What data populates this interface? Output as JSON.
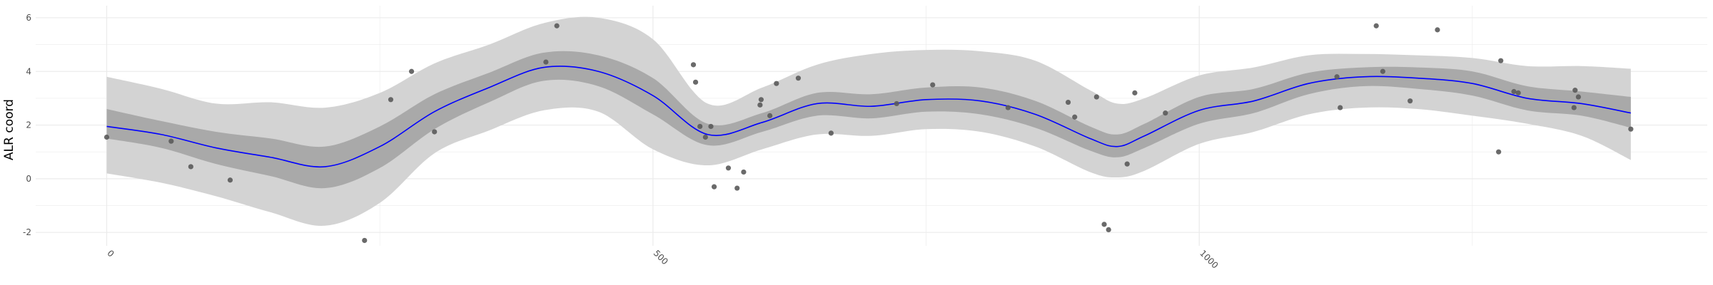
{
  "chart_data": {
    "type": "line",
    "title": "",
    "xlabel": "",
    "ylabel": "ALR coord",
    "xlim": [
      -65,
      1465
    ],
    "ylim": [
      -2.5,
      6.45
    ],
    "x_ticks": [
      0,
      500,
      1000
    ],
    "x_tick_labels": [
      "0",
      "500",
      "1000"
    ],
    "y_ticks": [
      -2,
      0,
      2,
      4,
      6
    ],
    "y_tick_labels": [
      "-2",
      "0",
      "2",
      "4",
      "6"
    ],
    "grid": true,
    "legend": "none",
    "colors": {
      "line": "#0000ff",
      "inner_band": "#a9a9a9",
      "outer_band": "#d3d3d3",
      "points": "#5a5a5a",
      "grid": "#ebebeb"
    },
    "series": [
      {
        "kind": "points",
        "x": [
          0,
          59,
          77,
          113,
          236,
          260,
          279,
          300,
          402,
          412,
          537,
          539,
          543,
          548,
          553,
          556,
          569,
          577,
          583,
          598,
          599,
          607,
          613,
          633,
          663,
          723,
          756,
          825,
          880,
          886,
          906,
          913,
          917,
          934,
          941,
          969,
          1126,
          1129,
          1162,
          1168,
          1193,
          1218,
          1274,
          1276,
          1288,
          1292,
          1343,
          1344,
          1347,
          1395
        ],
        "y": [
          1.55,
          1.4,
          0.45,
          -0.05,
          -2.3,
          2.95,
          4.0,
          1.75,
          4.35,
          5.7,
          4.25,
          3.6,
          1.95,
          1.55,
          1.95,
          -0.3,
          0.4,
          -0.35,
          0.25,
          2.75,
          2.95,
          2.35,
          3.55,
          3.75,
          1.7,
          2.8,
          3.5,
          2.65,
          2.85,
          2.3,
          3.05,
          -1.7,
          -1.9,
          0.55,
          3.2,
          2.45,
          3.8,
          2.65,
          5.7,
          4.0,
          2.9,
          5.55,
          1.0,
          4.4,
          3.25,
          3.2,
          2.65,
          3.3,
          3.05,
          1.85
        ]
      },
      {
        "kind": "smooth",
        "x": [
          0,
          50,
          100,
          150,
          200,
          250,
          300,
          350,
          400,
          450,
          500,
          550,
          600,
          650,
          700,
          750,
          800,
          850,
          900,
          925,
          950,
          1000,
          1050,
          1100,
          1150,
          1200,
          1250,
          1300,
          1350,
          1395
        ],
        "y": [
          1.95,
          1.65,
          1.15,
          0.8,
          0.45,
          1.2,
          2.5,
          3.4,
          4.15,
          4.0,
          3.1,
          1.65,
          2.1,
          2.8,
          2.7,
          2.95,
          2.9,
          2.4,
          1.5,
          1.2,
          1.6,
          2.55,
          2.9,
          3.55,
          3.8,
          3.75,
          3.55,
          3.0,
          2.8,
          2.45
        ],
        "inner_lower": [
          1.5,
          1.15,
          0.55,
          0.1,
          -0.35,
          0.4,
          1.85,
          2.85,
          3.65,
          3.45,
          2.4,
          1.25,
          1.75,
          2.35,
          2.25,
          2.5,
          2.4,
          1.9,
          1.05,
          0.8,
          1.15,
          2.05,
          2.45,
          3.15,
          3.45,
          3.35,
          3.1,
          2.55,
          2.35,
          1.9
        ],
        "inner_upper": [
          2.6,
          2.15,
          1.75,
          1.5,
          1.2,
          1.95,
          3.15,
          3.95,
          4.7,
          4.6,
          3.75,
          2.05,
          2.45,
          3.2,
          3.15,
          3.4,
          3.4,
          2.9,
          1.95,
          1.65,
          2.05,
          3.05,
          3.35,
          3.95,
          4.15,
          4.15,
          4.0,
          3.45,
          3.25,
          3.05
        ],
        "outer_lower": [
          0.2,
          -0.15,
          -0.65,
          -1.25,
          -1.75,
          -0.9,
          0.95,
          1.8,
          2.55,
          2.5,
          1.1,
          0.5,
          1.1,
          1.65,
          1.6,
          1.85,
          1.75,
          1.2,
          0.25,
          0.05,
          0.3,
          1.3,
          1.75,
          2.4,
          2.65,
          2.6,
          2.35,
          2.05,
          1.6,
          0.7
        ],
        "outer_upper": [
          3.8,
          3.35,
          2.8,
          2.85,
          2.65,
          3.2,
          4.3,
          5.0,
          5.8,
          6.0,
          5.2,
          2.8,
          3.4,
          4.25,
          4.65,
          4.8,
          4.75,
          4.4,
          3.3,
          2.8,
          3.0,
          3.85,
          4.15,
          4.6,
          4.65,
          4.6,
          4.5,
          4.2,
          4.2,
          4.1
        ]
      }
    ]
  }
}
